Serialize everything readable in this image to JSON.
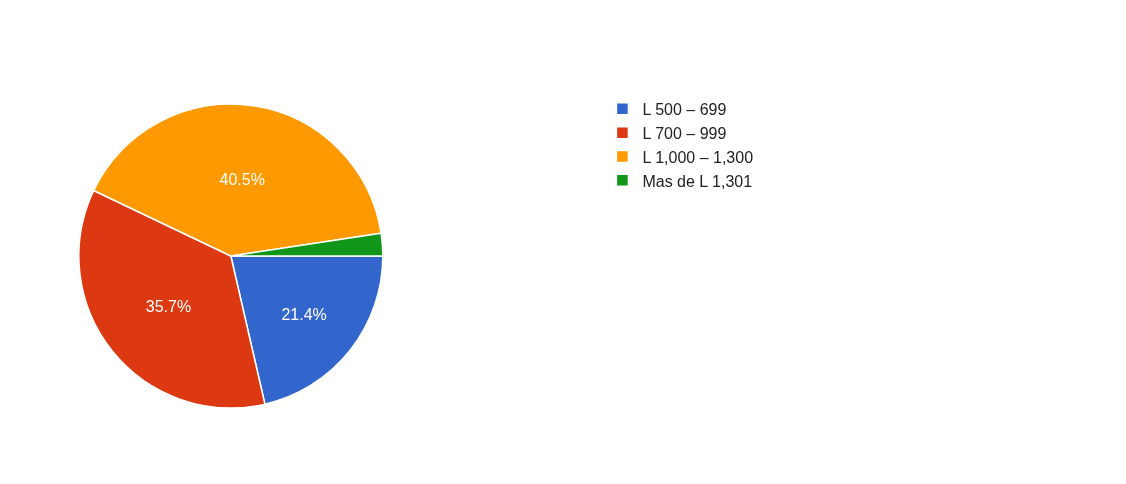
{
  "chart_data": {
    "type": "pie",
    "categories": [
      "L 500 – 699",
      "L 700 – 999",
      "L 1,000 – 1,300",
      "Mas de L 1,301"
    ],
    "values": [
      21.4,
      35.7,
      40.5,
      2.4
    ],
    "value_labels": [
      "21.4%",
      "35.7%",
      "40.5%",
      null
    ],
    "colors": [
      "#3366cc",
      "#dc3912",
      "#ff9900",
      "#109618"
    ],
    "legend": "right"
  }
}
